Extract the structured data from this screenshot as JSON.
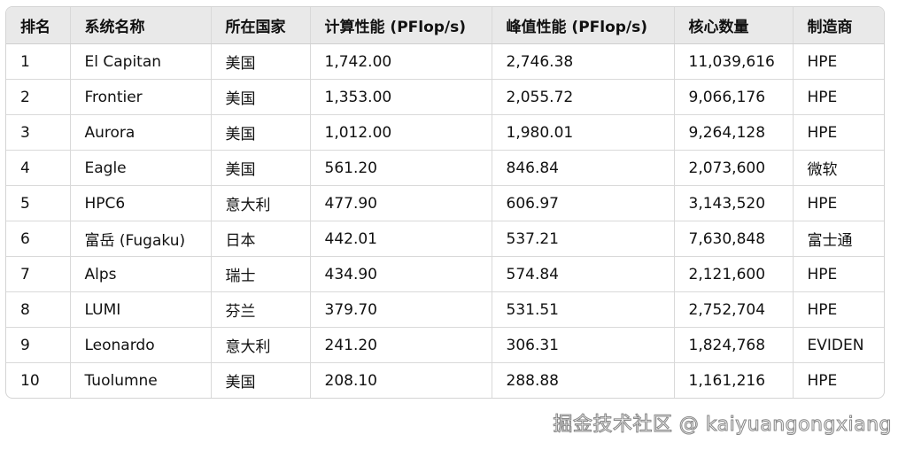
{
  "table": {
    "headers": [
      "排名",
      "系统名称",
      "所在国家",
      "计算性能 (PFlop/s)",
      "峰值性能 (PFlop/s)",
      "核心数量",
      "制造商"
    ],
    "rows": [
      [
        "1",
        "El Capitan",
        "美国",
        "1,742.00",
        "2,746.38",
        "11,039,616",
        "HPE"
      ],
      [
        "2",
        "Frontier",
        "美国",
        "1,353.00",
        "2,055.72",
        "9,066,176",
        "HPE"
      ],
      [
        "3",
        "Aurora",
        "美国",
        "1,012.00",
        "1,980.01",
        "9,264,128",
        "HPE"
      ],
      [
        "4",
        "Eagle",
        "美国",
        "561.20",
        "846.84",
        "2,073,600",
        "微软"
      ],
      [
        "5",
        "HPC6",
        "意大利",
        "477.90",
        "606.97",
        "3,143,520",
        "HPE"
      ],
      [
        "6",
        "富岳 (Fugaku)",
        "日本",
        "442.01",
        "537.21",
        "7,630,848",
        "富士通"
      ],
      [
        "7",
        "Alps",
        "瑞士",
        "434.90",
        "574.84",
        "2,121,600",
        "HPE"
      ],
      [
        "8",
        "LUMI",
        "芬兰",
        "379.70",
        "531.51",
        "2,752,704",
        "HPE"
      ],
      [
        "9",
        "Leonardo",
        "意大利",
        "241.20",
        "306.31",
        "1,824,768",
        "EVIDEN"
      ],
      [
        "10",
        "Tuolumne",
        "美国",
        "208.10",
        "288.88",
        "1,161,216",
        "HPE"
      ]
    ]
  },
  "watermark": "掘金技术社区 @ kaiyuangongxiang"
}
